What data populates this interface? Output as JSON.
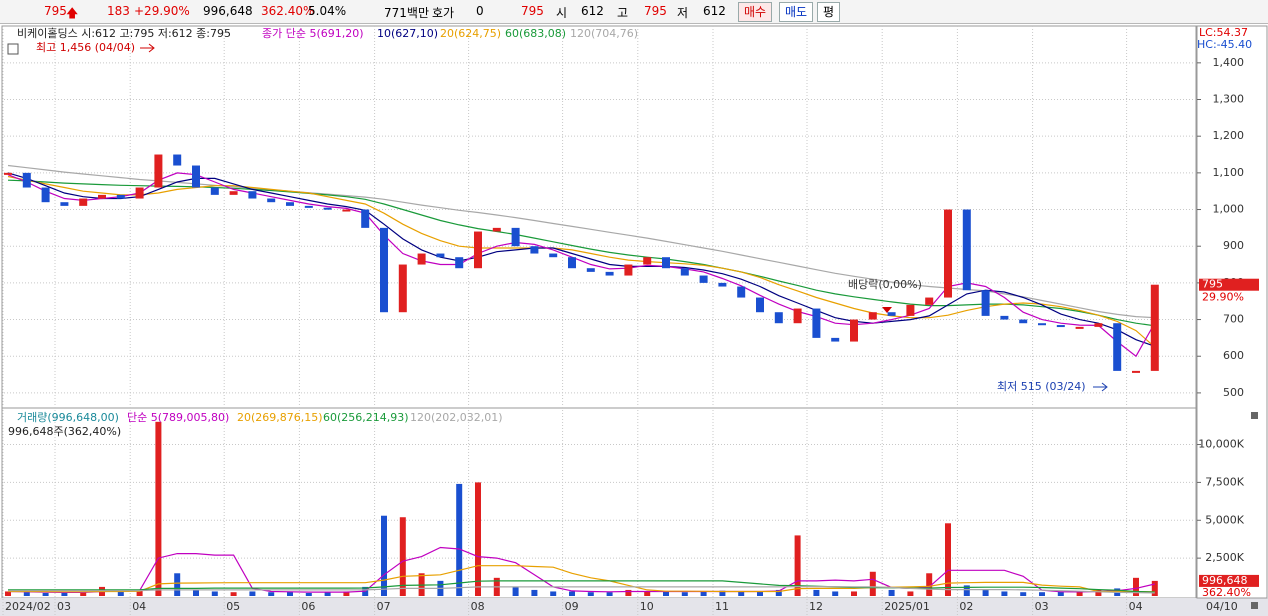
{
  "toolbar": {
    "price": "795",
    "change": "183",
    "change_pct": "+29.90%",
    "volume": "996,648",
    "volume_ratio": "362.40%",
    "turnover": "5.04%",
    "amount": "771백만",
    "quote_label": "호가",
    "quote": "0",
    "quote_price": "795",
    "open_label": "시",
    "open": "612",
    "high_label": "고",
    "high": "795",
    "low_label": "저",
    "low": "612",
    "buttons": [
      "매수",
      "매도",
      "평"
    ]
  },
  "chart_data": [
    {
      "type": "candlestick",
      "title": "비케이홀딩스 시:612 고:795 저:612 종:795",
      "lc_label": "LC:54.37",
      "hc_label": "HC:-45.40",
      "annotations": [
        "최고 1,456 (04/04)",
        "최저 515 (03/24)",
        "배당락(0,00%)"
      ],
      "last": 795,
      "last_change": "29.90%",
      "x_end_label": "04/10",
      "up_color": "#e02020",
      "down_color": "#1a4fd0",
      "grid": true,
      "categories": [
        "2024/02",
        null,
        null,
        "03",
        null,
        null,
        null,
        "04",
        null,
        null,
        null,
        null,
        "05",
        null,
        null,
        null,
        "06",
        null,
        null,
        null,
        "07",
        null,
        null,
        null,
        null,
        "08",
        null,
        null,
        null,
        null,
        "09",
        null,
        null,
        null,
        "10",
        null,
        null,
        null,
        "11",
        null,
        null,
        null,
        null,
        "12",
        null,
        null,
        null,
        "2025/01",
        null,
        null,
        null,
        "02",
        null,
        null,
        null,
        "03",
        null,
        null,
        null,
        null,
        "04",
        null
      ],
      "values": [
        1100,
        1060,
        1020,
        1010,
        1030,
        1040,
        1030,
        1060,
        1150,
        1120,
        1060,
        1040,
        1050,
        1030,
        1020,
        1010,
        1005,
        1000,
        1000,
        950,
        720,
        850,
        880,
        870,
        840,
        940,
        950,
        900,
        880,
        870,
        840,
        830,
        820,
        850,
        870,
        840,
        820,
        800,
        790,
        760,
        720,
        690,
        730,
        650,
        640,
        700,
        720,
        710,
        740,
        760,
        1000,
        780,
        710,
        700,
        690,
        685,
        680,
        680,
        690,
        560,
        560,
        795
      ],
      "series": [
        {
          "name": "종가 단순 5(691,20)",
          "color": "#c000c0",
          "values": [
            1095,
            1075,
            1050,
            1030,
            1025,
            1030,
            1035,
            1045,
            1080,
            1100,
            1095,
            1075,
            1055,
            1045,
            1035,
            1025,
            1015,
            1008,
            1003,
            990,
            930,
            880,
            860,
            850,
            850,
            880,
            900,
            910,
            905,
            890,
            870,
            850,
            838,
            840,
            848,
            845,
            838,
            830,
            812,
            792,
            766,
            742,
            722,
            708,
            690,
            686,
            690,
            700,
            712,
            730,
            790,
            800,
            790,
            760,
            720,
            700,
            690,
            685,
            684,
            640,
            600,
            691
          ]
        },
        {
          "name": "10(627,10)",
          "color": "#000080",
          "values": [
            1100,
            1085,
            1065,
            1045,
            1035,
            1030,
            1030,
            1035,
            1055,
            1075,
            1085,
            1085,
            1070,
            1055,
            1045,
            1035,
            1025,
            1015,
            1008,
            998,
            960,
            920,
            890,
            870,
            860,
            870,
            885,
            890,
            895,
            895,
            880,
            865,
            850,
            845,
            845,
            845,
            842,
            835,
            825,
            810,
            790,
            765,
            745,
            725,
            705,
            695,
            690,
            695,
            700,
            710,
            740,
            770,
            780,
            775,
            760,
            740,
            715,
            700,
            690,
            672,
            645,
            627
          ]
        },
        {
          "name": "20(624,75)",
          "color": "#e8a000",
          "values": [
            1090,
            1080,
            1070,
            1060,
            1050,
            1045,
            1040,
            1040,
            1045,
            1055,
            1060,
            1065,
            1065,
            1060,
            1055,
            1050,
            1045,
            1035,
            1025,
            1015,
            990,
            960,
            935,
            915,
            900,
            895,
            895,
            895,
            895,
            895,
            890,
            880,
            870,
            862,
            858,
            855,
            852,
            848,
            840,
            830,
            815,
            795,
            778,
            760,
            745,
            730,
            718,
            710,
            705,
            705,
            712,
            725,
            735,
            742,
            745,
            742,
            735,
            725,
            712,
            695,
            670,
            625
          ]
        },
        {
          "name": "60(683,08)",
          "color": "#1a9a3a",
          "values": [
            1080,
            1078,
            1075,
            1072,
            1070,
            1068,
            1066,
            1065,
            1064,
            1063,
            1062,
            1060,
            1058,
            1055,
            1052,
            1048,
            1044,
            1040,
            1035,
            1028,
            1015,
            1000,
            985,
            970,
            958,
            948,
            940,
            932,
            922,
            912,
            902,
            892,
            883,
            876,
            870,
            865,
            858,
            850,
            840,
            830,
            818,
            805,
            793,
            780,
            770,
            762,
            755,
            748,
            742,
            738,
            738,
            740,
            742,
            742,
            740,
            735,
            730,
            722,
            712,
            700,
            690,
            683
          ]
        },
        {
          "name": "120(704,76)",
          "color": "#a8a8a8",
          "values": [
            1120,
            1114,
            1108,
            1102,
            1097,
            1092,
            1087,
            1082,
            1078,
            1074,
            1070,
            1066,
            1062,
            1058,
            1054,
            1050,
            1046,
            1042,
            1038,
            1034,
            1028,
            1020,
            1012,
            1005,
            998,
            992,
            985,
            978,
            970,
            962,
            954,
            946,
            938,
            930,
            922,
            913,
            904,
            895,
            886,
            876,
            866,
            856,
            846,
            836,
            826,
            818,
            810,
            802,
            795,
            790,
            786,
            782,
            778,
            770,
            762,
            752,
            742,
            732,
            722,
            714,
            708,
            705
          ]
        }
      ],
      "ylim": [
        467,
        1495
      ],
      "yticks": [
        500,
        600,
        700,
        800,
        900,
        {
          "value": 1000,
          "label": "1,000"
        },
        {
          "value": 1100,
          "label": "1,100"
        },
        {
          "value": 1200,
          "label": "1,200"
        },
        {
          "value": 1300,
          "label": "1,300"
        },
        {
          "value": 1400,
          "label": "1,400"
        }
      ]
    },
    {
      "type": "bar",
      "subtitle": "996,648주(362,40%)",
      "name": "거래량(996,648,00)",
      "color": "#1a4fd0",
      "last": {
        "value": 996.648,
        "label": "996,648"
      },
      "last_ratio": "362.40%",
      "values": [
        300,
        250,
        200,
        200,
        250,
        600,
        300,
        400,
        11500,
        1500,
        400,
        300,
        250,
        300,
        250,
        300,
        200,
        250,
        300,
        600,
        5300,
        5200,
        1500,
        1000,
        7400,
        7500,
        1200,
        600,
        400,
        300,
        300,
        250,
        250,
        400,
        300,
        300,
        250,
        300,
        350,
        300,
        300,
        400,
        4000,
        400,
        300,
        300,
        1600,
        400,
        300,
        1500,
        4800,
        700,
        400,
        300,
        250,
        250,
        300,
        300,
        400,
        500,
        1200,
        997
      ],
      "series": [
        {
          "name": "단순 5(789,005,80)",
          "color": "#c000c0",
          "values": [
            300,
            280,
            260,
            240,
            240,
            300,
            320,
            350,
            2500,
            2800,
            2800,
            2700,
            2700,
            500,
            300,
            280,
            260,
            260,
            260,
            320,
            1400,
            2300,
            2600,
            3200,
            3100,
            2600,
            2500,
            2200,
            1400,
            600,
            340,
            300,
            280,
            300,
            300,
            300,
            300,
            300,
            300,
            300,
            300,
            330,
            1000,
            1000,
            1050,
            1000,
            1100,
            560,
            500,
            600,
            1700,
            1700,
            1700,
            1700,
            1300,
            380,
            280,
            270,
            300,
            350,
            500,
            789
          ]
        },
        {
          "name": "20(269,876,15)",
          "color": "#e8a000",
          "values": [
            300,
            300,
            290,
            280,
            280,
            300,
            300,
            310,
            800,
            850,
            860,
            870,
            880,
            880,
            880,
            880,
            880,
            880,
            880,
            880,
            1050,
            1300,
            1350,
            1400,
            1700,
            2000,
            2000,
            2000,
            1950,
            1900,
            1500,
            1200,
            1000,
            700,
            400,
            320,
            320,
            310,
            300,
            300,
            300,
            300,
            490,
            500,
            500,
            500,
            560,
            580,
            600,
            640,
            850,
            880,
            900,
            900,
            900,
            720,
            650,
            600,
            300,
            300,
            300,
            270
          ]
        },
        {
          "name": "60(256,214,93)",
          "color": "#1a9a3a",
          "values": [
            400,
            400,
            400,
            400,
            400,
            400,
            400,
            400,
            500,
            500,
            500,
            520,
            520,
            520,
            520,
            520,
            520,
            520,
            520,
            530,
            600,
            700,
            720,
            740,
            860,
            980,
            1000,
            1000,
            1000,
            1000,
            1000,
            1000,
            1000,
            1000,
            1000,
            1000,
            1000,
            1000,
            1000,
            900,
            800,
            700,
            680,
            650,
            600,
            560,
            550,
            540,
            520,
            520,
            560,
            570,
            580,
            580,
            580,
            560,
            520,
            480,
            420,
            380,
            300,
            256
          ]
        },
        {
          "name": "120(202,032,01)",
          "color": "#a8a8a8",
          "values": [
            350,
            350,
            350,
            350,
            350,
            350,
            350,
            350,
            400,
            400,
            400,
            400,
            400,
            400,
            400,
            400,
            400,
            400,
            400,
            400,
            450,
            500,
            500,
            500,
            550,
            600,
            600,
            600,
            600,
            600,
            600,
            600,
            600,
            600,
            600,
            600,
            600,
            600,
            600,
            600,
            600,
            600,
            620,
            620,
            620,
            600,
            600,
            560,
            500,
            450,
            420,
            420,
            420,
            420,
            400,
            380,
            350,
            320,
            280,
            240,
            220,
            202
          ]
        }
      ],
      "ylim": [
        0,
        12280
      ],
      "yticks": [
        {
          "value": 2500,
          "label": "2,500K"
        },
        {
          "value": 5000,
          "label": "5,000K"
        },
        {
          "value": 7500,
          "label": "7,500K"
        },
        {
          "value": 10000,
          "label": "10,000K"
        }
      ],
      "grid": true
    }
  ]
}
